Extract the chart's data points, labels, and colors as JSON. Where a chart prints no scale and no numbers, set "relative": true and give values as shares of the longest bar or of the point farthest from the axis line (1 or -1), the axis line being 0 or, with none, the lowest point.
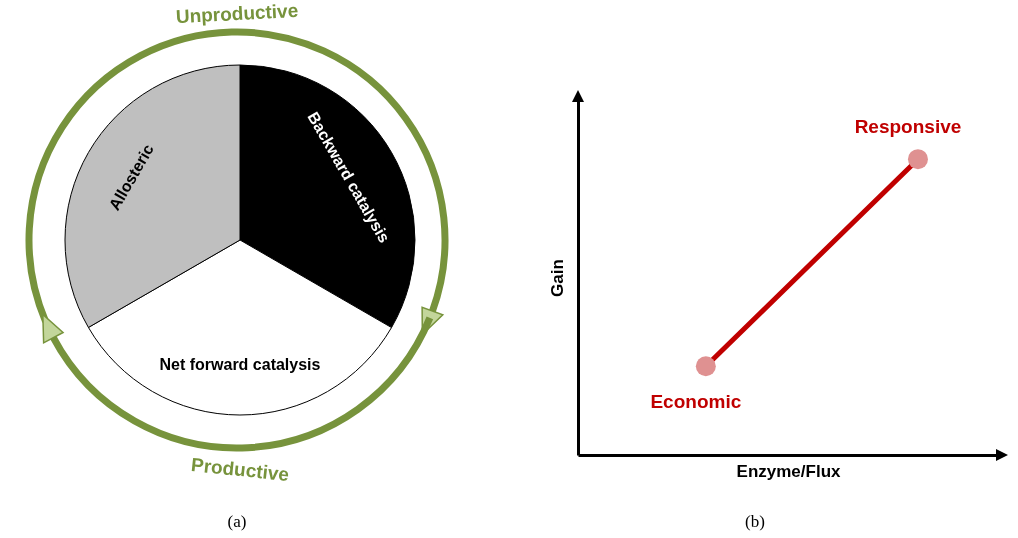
{
  "chart_data": [
    {
      "type": "pie",
      "categories": [
        "Backward catalysis",
        "Net forward catalysis",
        "Allosteric"
      ],
      "values": [
        33.34,
        33.33,
        33.33
      ],
      "colors": [
        "#000000",
        "#ffffff",
        "#bfbfbf"
      ],
      "annotations": [
        "Unproductive",
        "Productive",
        "(a)"
      ]
    },
    {
      "type": "line",
      "relative": true,
      "categories": [
        null,
        null
      ],
      "marker": "circle",
      "xlabel": "Enzyme/Flux",
      "ylabel": "Gain",
      "series": [
        {
          "color": "#c00000",
          "values": [
            0.3,
            1
          ]
        }
      ],
      "annotations": [
        {
          "text": "Economic",
          "y": 0.3
        },
        {
          "text": "Responsive",
          "y": 1
        },
        "(b)"
      ]
    }
  ]
}
